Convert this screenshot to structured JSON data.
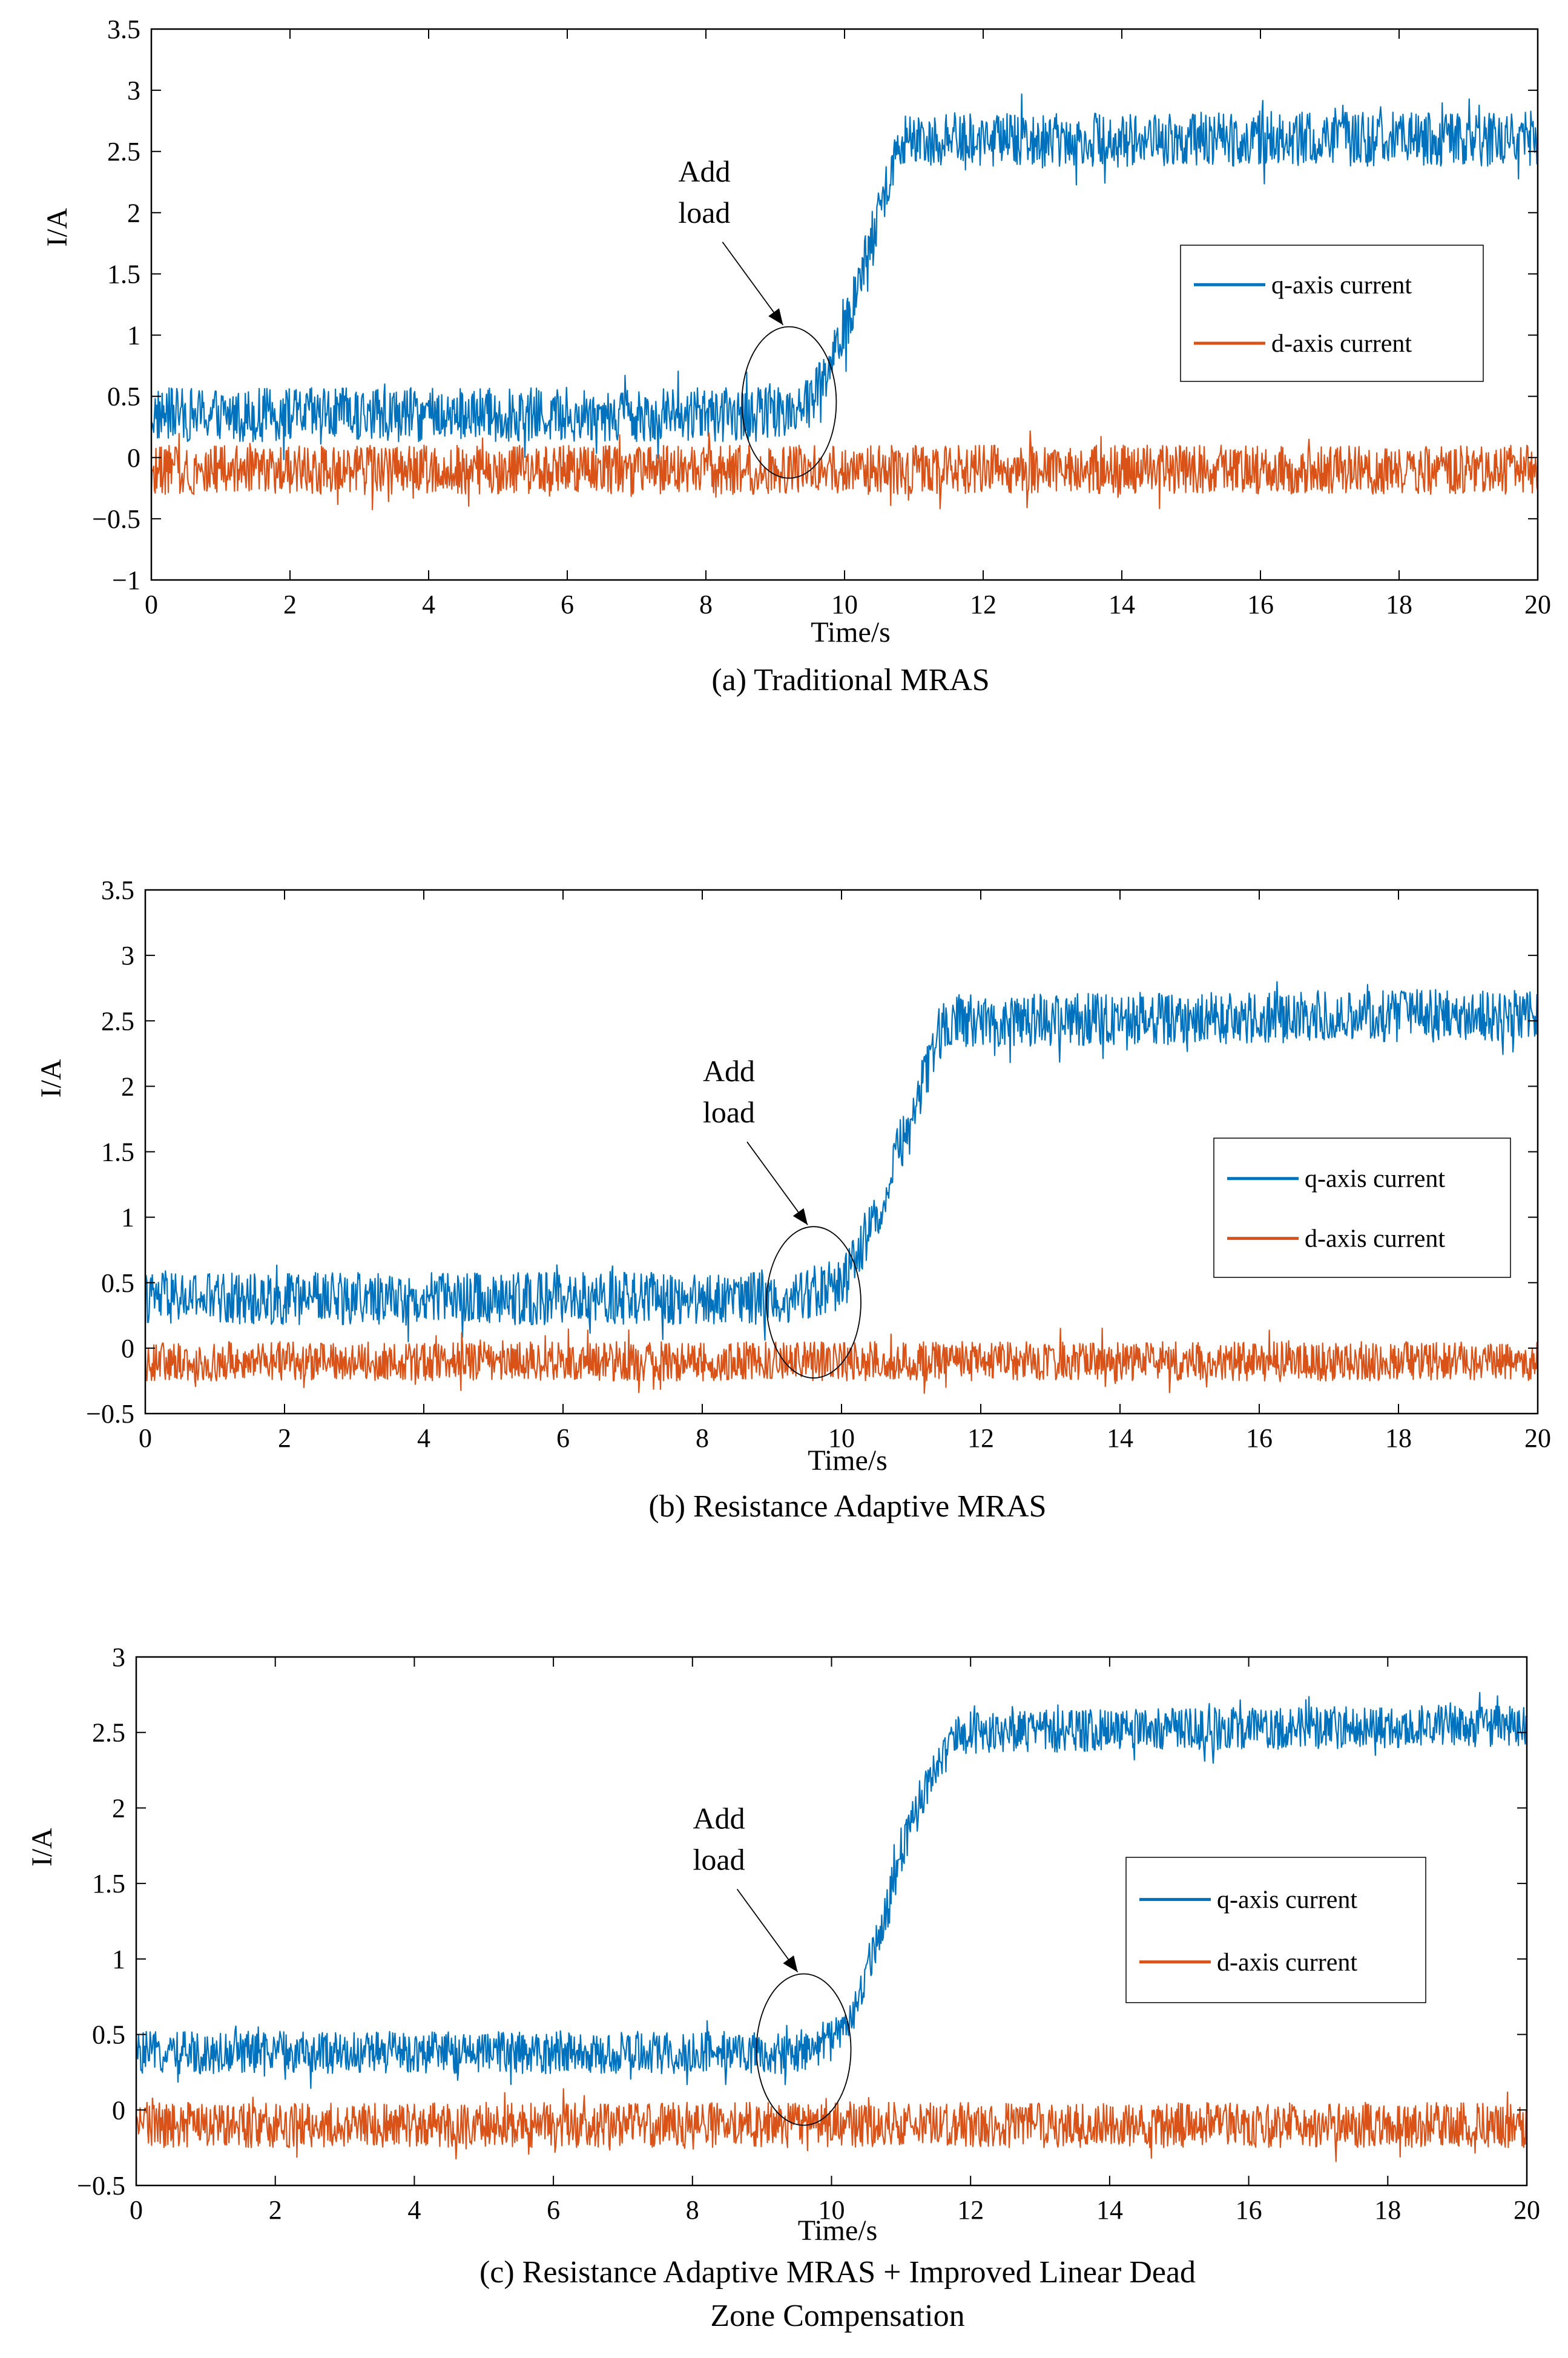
{
  "figure": {
    "colors": {
      "q_axis": "#0072BD",
      "d_axis": "#D95319",
      "axes": "#000000",
      "background": "#FFFFFF"
    }
  },
  "chart_data": [
    {
      "id": "a",
      "type": "line",
      "caption": "(a) Traditional MRAS",
      "xlabel": "Time/s",
      "ylabel": "I/A",
      "xlim": [
        0,
        20
      ],
      "ylim": [
        -1,
        3.5
      ],
      "xticks": [
        0,
        2,
        4,
        6,
        8,
        10,
        12,
        14,
        16,
        18,
        20
      ],
      "yticks": [
        -1,
        -0.5,
        0,
        0.5,
        1,
        1.5,
        2,
        2.5,
        3,
        3.5
      ],
      "ytick_labels": [
        "−1",
        "−0.5",
        "0",
        "0.5",
        "1",
        "1.5",
        "2",
        "2.5",
        "3",
        "3.5"
      ],
      "legend_position": "right",
      "annotation": {
        "lines": [
          "Add",
          "load"
        ],
        "x": 9.2,
        "y": 0.45
      },
      "series": [
        {
          "name": "q-axis current",
          "color": "#0072BD",
          "x": [
            0,
            8.8,
            9.5,
            10.0,
            10.5,
            10.8,
            20
          ],
          "y": [
            0.35,
            0.35,
            0.45,
            1.0,
            2.0,
            2.6,
            2.6
          ],
          "noise": 0.22
        },
        {
          "name": "d-axis current",
          "color": "#D95319",
          "x": [
            0,
            20
          ],
          "y": [
            -0.1,
            -0.1
          ],
          "noise": 0.2
        }
      ]
    },
    {
      "id": "b",
      "type": "line",
      "caption": "(b) Resistance Adaptive MRAS",
      "xlabel": "Time/s",
      "ylabel": "I/A",
      "xlim": [
        0,
        20
      ],
      "ylim": [
        -0.5,
        3.5
      ],
      "xticks": [
        0,
        2,
        4,
        6,
        8,
        10,
        12,
        14,
        16,
        18,
        20
      ],
      "yticks": [
        -0.5,
        0,
        0.5,
        1,
        1.5,
        2,
        2.5,
        3,
        3.5
      ],
      "ytick_labels": [
        "−0.5",
        "0",
        "0.5",
        "1",
        "1.5",
        "2",
        "2.5",
        "3",
        "3.5"
      ],
      "legend_position": "right",
      "annotation": {
        "lines": [
          "Add",
          "load"
        ],
        "x": 9.6,
        "y": 0.35
      },
      "series": [
        {
          "name": "q-axis current",
          "color": "#0072BD",
          "x": [
            0,
            9.3,
            10.0,
            10.5,
            11.0,
            11.5,
            20
          ],
          "y": [
            0.38,
            0.38,
            0.5,
            1.0,
            1.8,
            2.5,
            2.55
          ],
          "noise": 0.2
        },
        {
          "name": "d-axis current",
          "color": "#D95319",
          "x": [
            0,
            20
          ],
          "y": [
            -0.1,
            -0.1
          ],
          "noise": 0.15
        }
      ]
    },
    {
      "id": "c",
      "type": "line",
      "caption": "(c) Resistance Adaptive MRAS + Improved Linear Dead",
      "caption_line2": "Zone Compensation",
      "xlabel": "Time/s",
      "ylabel": "I/A",
      "xlim": [
        0,
        20
      ],
      "ylim": [
        -0.5,
        3
      ],
      "xticks": [
        0,
        2,
        4,
        6,
        8,
        10,
        12,
        14,
        16,
        18,
        20
      ],
      "yticks": [
        -0.5,
        0,
        0.5,
        1,
        1.5,
        2,
        2.5,
        3
      ],
      "ytick_labels": [
        "−0.5",
        "0",
        "0.5",
        "1",
        "1.5",
        "2",
        "2.5",
        "3"
      ],
      "legend_position": "right",
      "annotation": {
        "lines": [
          "Add",
          "load"
        ],
        "x": 9.6,
        "y": 0.4
      },
      "series": [
        {
          "name": "q-axis current",
          "color": "#0072BD",
          "x": [
            0,
            9.5,
            10.2,
            10.7,
            11.2,
            11.8,
            20
          ],
          "y": [
            0.38,
            0.38,
            0.5,
            1.2,
            2.0,
            2.5,
            2.55
          ],
          "noise": 0.14
        },
        {
          "name": "d-axis current",
          "color": "#D95319",
          "x": [
            0,
            20
          ],
          "y": [
            -0.1,
            -0.1
          ],
          "noise": 0.15
        }
      ]
    }
  ]
}
